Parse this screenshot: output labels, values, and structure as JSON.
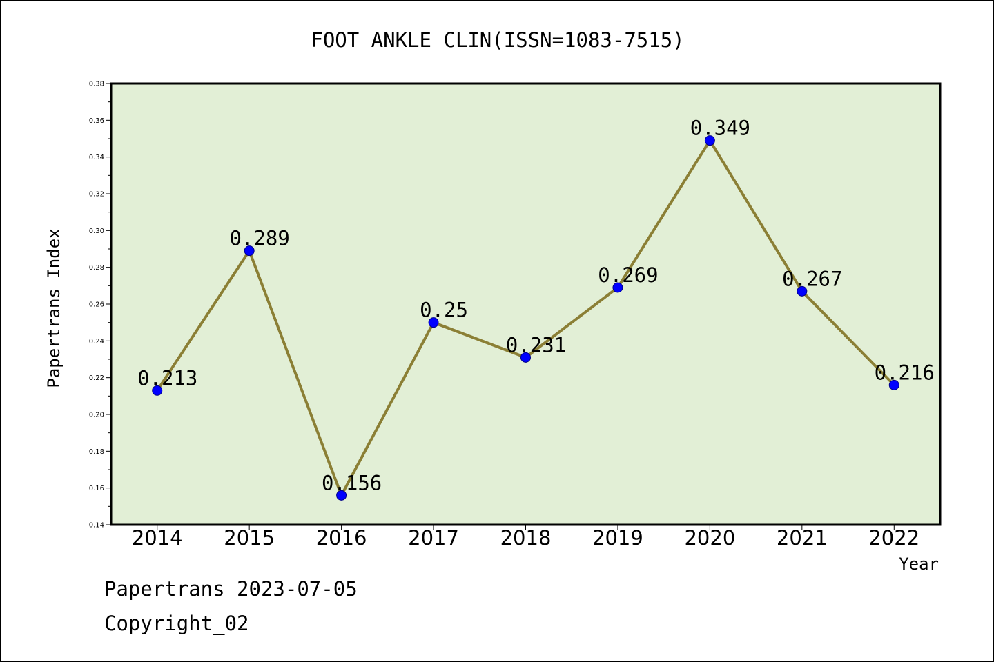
{
  "chart_data": {
    "type": "line",
    "title": "FOOT ANKLE CLIN(ISSN=1083-7515)",
    "xlabel": "Year",
    "ylabel": "Papertrans Index",
    "categories": [
      "2014",
      "2015",
      "2016",
      "2017",
      "2018",
      "2019",
      "2020",
      "2021",
      "2022"
    ],
    "series": [
      {
        "values": [
          0.213,
          0.289,
          0.156,
          0.25,
          0.231,
          0.269,
          0.349,
          0.267,
          0.216
        ],
        "data_labels": [
          "0.213",
          "0.289",
          "0.156",
          "0.25",
          "0.231",
          "0.269",
          "0.349",
          "0.267",
          "0.216"
        ]
      }
    ],
    "ylim": [
      0.14,
      0.38
    ],
    "yticks": [
      "0.14",
      "0.16",
      "0.18",
      "0.20",
      "0.22",
      "0.24",
      "0.26",
      "0.28",
      "0.30",
      "0.32",
      "0.34",
      "0.36",
      "0.38"
    ],
    "grid": false,
    "colors": {
      "plot_background": "#e2efd6",
      "line": "#8b7f35",
      "marker": "#0000ff",
      "marker_edge": "#00008b"
    }
  },
  "footer": {
    "line1": "Papertrans 2023-07-05",
    "line2": "Copyright_02"
  }
}
